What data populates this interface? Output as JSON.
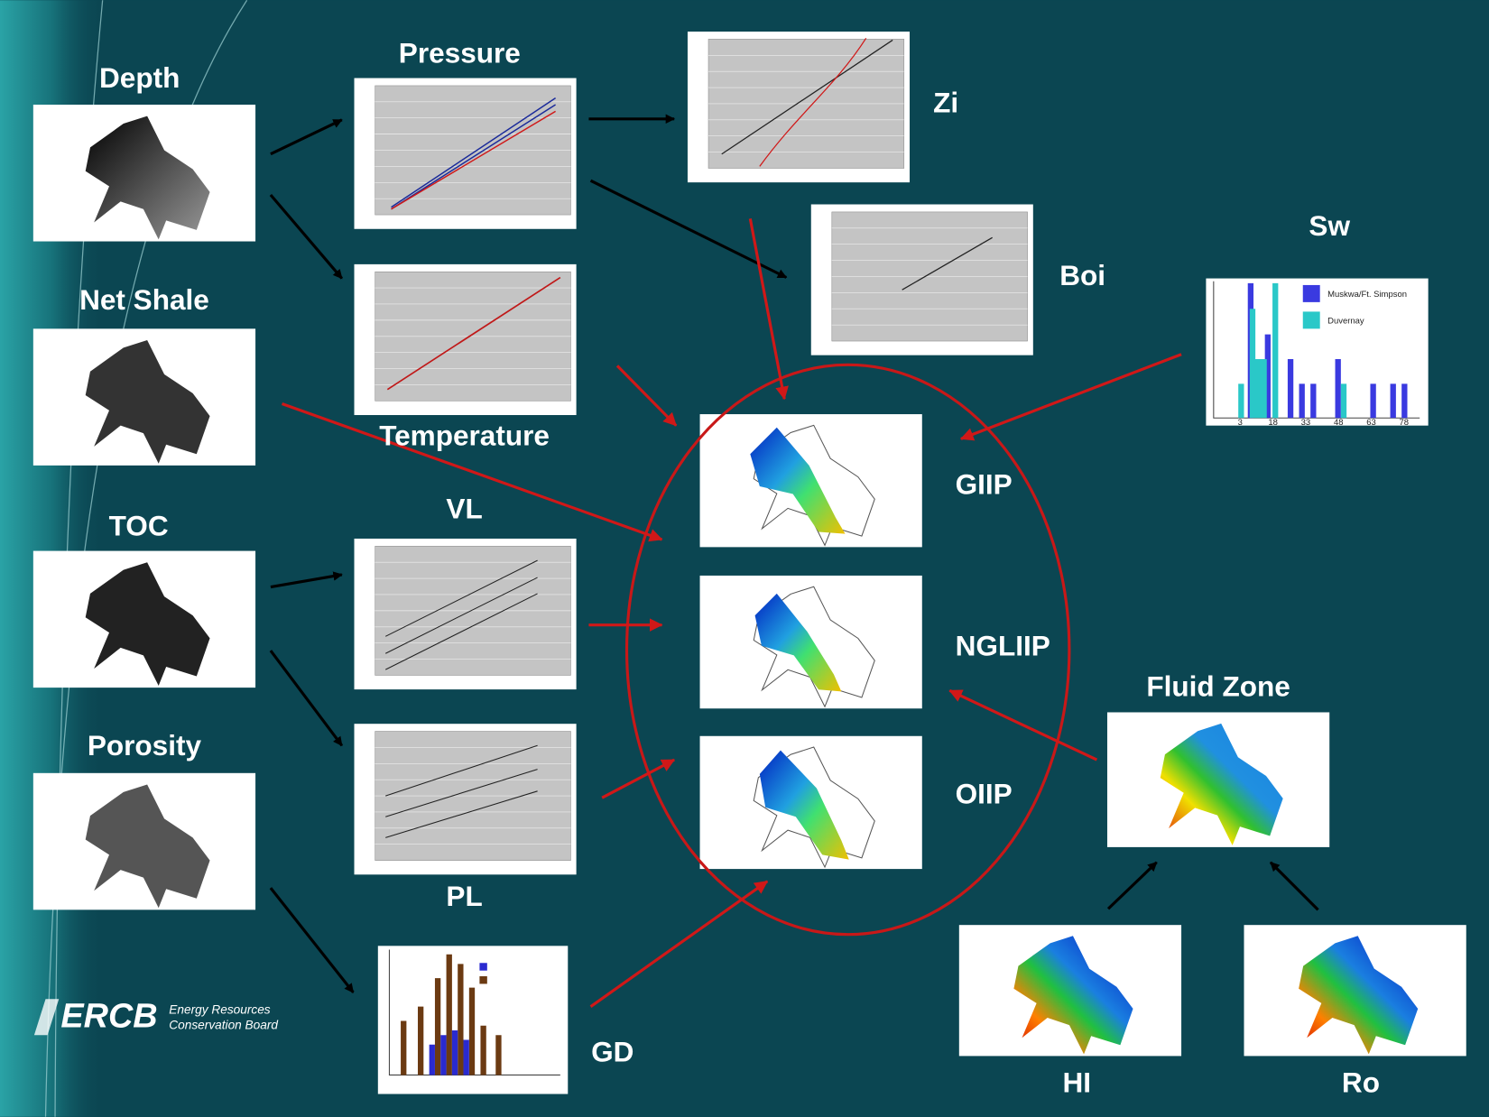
{
  "nodes": [
    {
      "label": "Depth"
    },
    {
      "label": "Net Shale"
    },
    {
      "label": "TOC"
    },
    {
      "label": "Porosity"
    },
    {
      "label": "Pressure"
    },
    {
      "label": "Temperature"
    },
    {
      "label": "VL"
    },
    {
      "label": "PL"
    },
    {
      "label": "GD"
    },
    {
      "label": "Zi"
    },
    {
      "label": "Boi"
    },
    {
      "label": "Sw"
    },
    {
      "label": "GIIP"
    },
    {
      "label": "NGLIIP"
    },
    {
      "label": "OIIP"
    },
    {
      "label": "Fluid Zone"
    },
    {
      "label": "HI"
    },
    {
      "label": "Ro"
    }
  ],
  "sw_chart": {
    "legend": [
      "Muskwa/Ft. Simpson",
      "Duvernay"
    ],
    "xticks": [
      "3",
      "18",
      "33",
      "48",
      "63",
      "78"
    ]
  },
  "logo": {
    "mark": "ERCB",
    "line1": "Energy Resources",
    "line2": "Conservation Board"
  }
}
